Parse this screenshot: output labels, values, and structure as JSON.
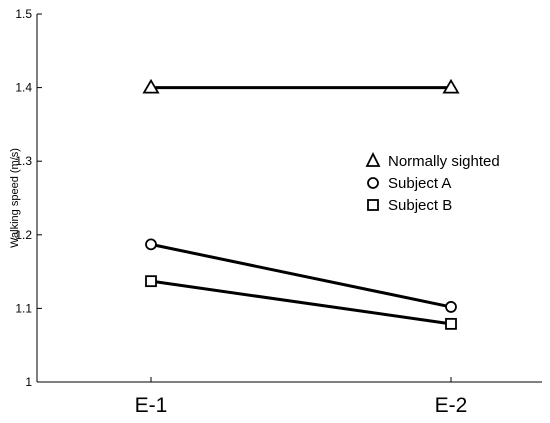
{
  "chart_data": {
    "type": "line",
    "categories": [
      "E-1",
      "E-2"
    ],
    "ylabel": "Walking speed (m/s)",
    "xlabel": "",
    "title": "",
    "ylim": [
      1.0,
      1.5
    ],
    "yticks": [
      "1",
      "1.1",
      "1.2",
      "1.3",
      "1.4",
      "1.5"
    ],
    "ytick_values": [
      1.0,
      1.1,
      1.2,
      1.3,
      1.4,
      1.5
    ],
    "grid": false,
    "legend_position": "right",
    "series": [
      {
        "name": "Normally sighted",
        "marker": "triangle",
        "values": [
          1.4,
          1.4
        ]
      },
      {
        "name": "Subject A",
        "marker": "circle",
        "values": [
          1.187,
          1.102
        ]
      },
      {
        "name": "Subject B",
        "marker": "square",
        "values": [
          1.137,
          1.079
        ]
      }
    ],
    "colors": {
      "line": "#000000",
      "marker_fill": "#ffffff"
    }
  }
}
